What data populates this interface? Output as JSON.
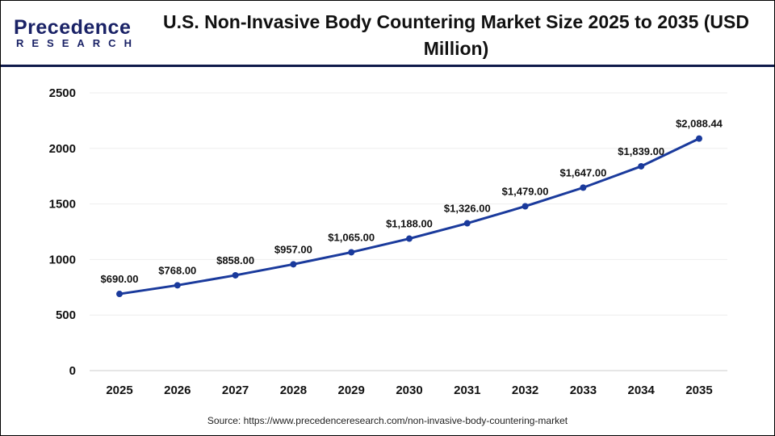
{
  "logo": {
    "main": "Precedence",
    "sub": "RESEARCH"
  },
  "title": "U.S. Non-Invasive Body Countering Market Size 2025 to 2035 (USD Million)",
  "source": "Source: https://www.precedenceresearch.com/non-invasive-body-countering-market",
  "chart_data": {
    "type": "line",
    "title": "U.S. Non-Invasive Body Countering Market Size 2025 to 2035 (USD Million)",
    "categories": [
      "2025",
      "2026",
      "2027",
      "2028",
      "2029",
      "2030",
      "2031",
      "2032",
      "2033",
      "2034",
      "2035"
    ],
    "values": [
      690,
      768,
      858,
      957,
      1065,
      1188,
      1326,
      1479,
      1647,
      1839,
      2088.44
    ],
    "data_labels": [
      "$690.00",
      "$768.00",
      "$858.00",
      "$957.00",
      "$1,065.00",
      "$1,188.00",
      "$1,326.00",
      "$1,479.00",
      "$1,647.00",
      "$1,839.00",
      "$2,088.44"
    ],
    "yticks": [
      "0",
      "500",
      "1000",
      "1500",
      "2000",
      "2500"
    ],
    "ylim": [
      0,
      2500
    ],
    "grid": true,
    "line_color": "#1a3a9c"
  }
}
